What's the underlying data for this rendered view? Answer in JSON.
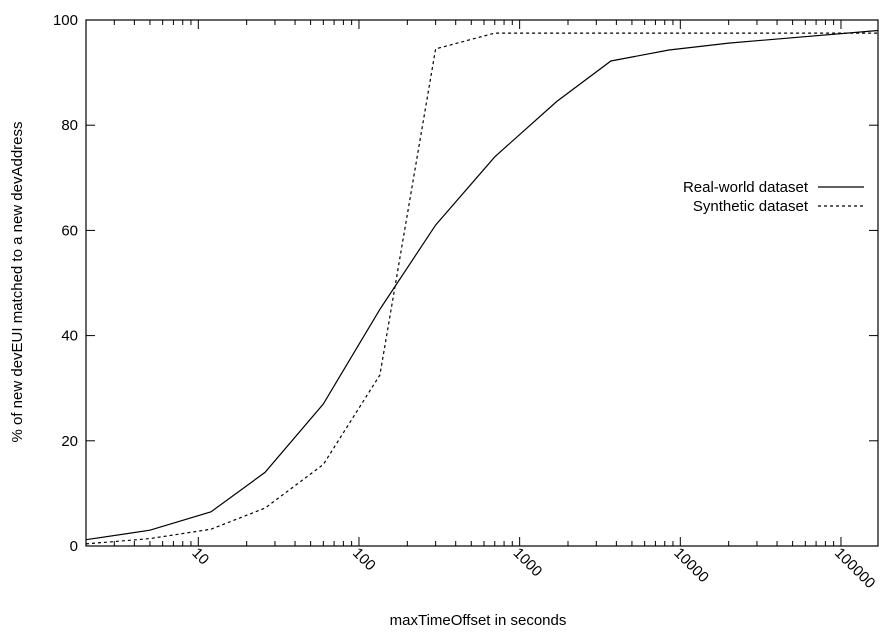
{
  "chart_data": {
    "type": "line",
    "title": "",
    "xlabel": "maxTimeOffset in seconds",
    "ylabel": "% of new devEUI matched to a new devAddress",
    "xscale": "log",
    "xlim": [
      2,
      170000
    ],
    "ylim": [
      0,
      100
    ],
    "x_ticks": [
      10,
      100,
      1000,
      10000,
      100000
    ],
    "y_ticks": [
      0,
      20,
      40,
      60,
      80,
      100
    ],
    "x_tick_labels": [
      "10",
      "100",
      "1000",
      "10000",
      "100000"
    ],
    "y_tick_labels": [
      "0",
      "20",
      "40",
      "60",
      "80",
      "100"
    ],
    "grid": false,
    "legend_position": "right",
    "series": [
      {
        "name": "Real-world dataset",
        "line_style": "solid",
        "x": [
          2,
          5,
          12,
          26,
          60,
          135,
          300,
          700,
          1700,
          3700,
          8500,
          20000,
          170000
        ],
        "y": [
          1.2,
          3,
          6.5,
          14,
          27,
          45,
          61,
          74,
          84.5,
          92.2,
          94.3,
          95.6,
          98
        ]
      },
      {
        "name": "Synthetic dataset",
        "line_style": "dashed",
        "x": [
          2,
          5,
          12,
          26,
          60,
          135,
          300,
          700,
          170000
        ],
        "y": [
          0.4,
          1.4,
          3.2,
          7.2,
          15.5,
          32.5,
          94.5,
          97.5,
          97.5
        ]
      }
    ]
  }
}
